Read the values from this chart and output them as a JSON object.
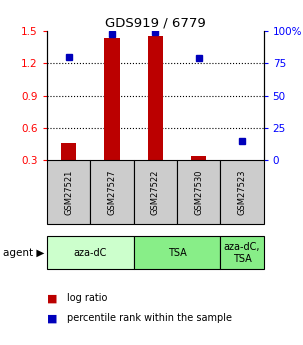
{
  "title": "GDS919 / 6779",
  "samples": [
    "GSM27521",
    "GSM27527",
    "GSM27522",
    "GSM27530",
    "GSM27523"
  ],
  "log_ratio": [
    0.46,
    1.44,
    1.45,
    0.34,
    0.3
  ],
  "percentile_rank_pct": [
    80,
    98,
    99,
    79,
    15
  ],
  "bar_color": "#bb0000",
  "dot_color": "#0000bb",
  "ylim_left": [
    0.3,
    1.5
  ],
  "ylim_right": [
    0,
    100
  ],
  "yticks_left": [
    0.3,
    0.6,
    0.9,
    1.2,
    1.5
  ],
  "yticks_right": [
    0,
    25,
    50,
    75,
    100
  ],
  "ytick_labels_right": [
    "0",
    "25",
    "50",
    "75",
    "100%"
  ],
  "dotted_lines": [
    0.6,
    0.9,
    1.2
  ],
  "agent_groups": [
    {
      "label": "aza-dC",
      "xstart": 0,
      "xend": 2,
      "color": "#ccffcc"
    },
    {
      "label": "TSA",
      "xstart": 2,
      "xend": 4,
      "color": "#88ee88"
    },
    {
      "label": "aza-dC,\nTSA",
      "xstart": 4,
      "xend": 5,
      "color": "#88ee88"
    }
  ],
  "sample_box_color": "#cccccc",
  "bar_width": 0.35,
  "legend_items": [
    {
      "color": "#bb0000",
      "label": "log ratio"
    },
    {
      "color": "#0000bb",
      "label": "percentile rank within the sample"
    }
  ]
}
